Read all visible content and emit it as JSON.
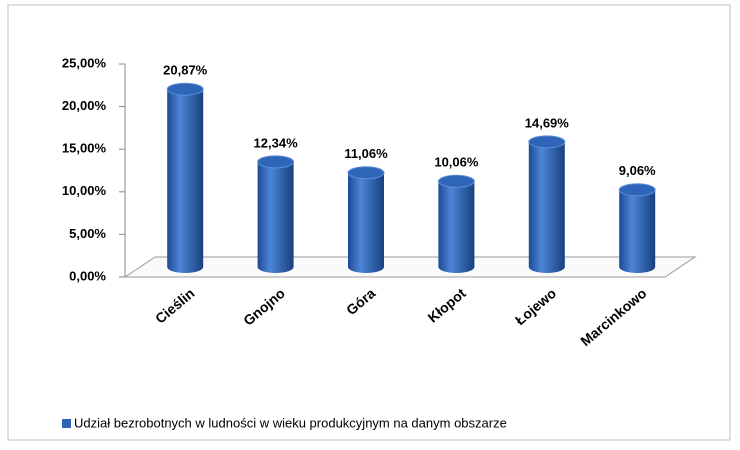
{
  "chart_data": {
    "type": "bar",
    "categories": [
      "Cieślin",
      "Gnojno",
      "Góra",
      "Kłopot",
      "Łojewo",
      "Marcinkowo"
    ],
    "series": [
      {
        "name": "Udział bezrobotnych w ludności w wieku produkcyjnym na danym obszarze",
        "color": "#2e65b8",
        "values": [
          20.87,
          12.34,
          11.06,
          10.06,
          14.69,
          9.06
        ],
        "value_labels": [
          "20,87%",
          "12,34%",
          "11,06%",
          "10,06%",
          "14,69%",
          "9,06%"
        ]
      }
    ],
    "ylim": [
      0,
      25
    ],
    "yticks": [
      {
        "value": 0,
        "label": "0,00%"
      },
      {
        "value": 5,
        "label": "5,00%"
      },
      {
        "value": 10,
        "label": "10,00%"
      },
      {
        "value": 15,
        "label": "15,00%"
      },
      {
        "value": 20,
        "label": "20,00%"
      },
      {
        "value": 25,
        "label": "25,00%"
      }
    ],
    "legend": "bottom"
  }
}
